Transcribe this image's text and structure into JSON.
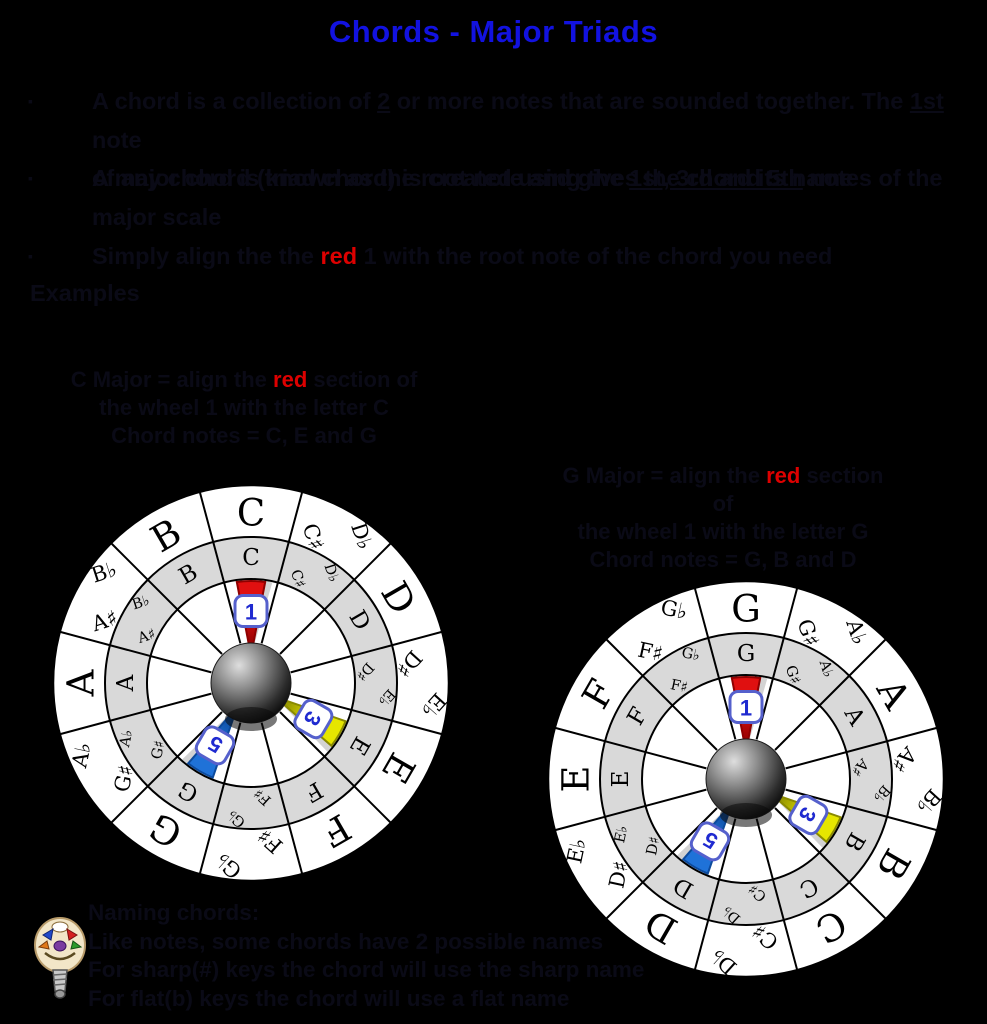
{
  "title": "Chords - Major Triads",
  "colors": {
    "title_blue": "#1212e0",
    "accent_red": "#dd0000",
    "body_text": "#0a0a16",
    "ring_gray": "#d9d9d9",
    "wedge": {
      "red": {
        "fill": "#e01010",
        "edge": "#8f0000"
      },
      "yellow": {
        "fill": "#e6e600",
        "edge": "#8a8a00"
      },
      "blue": {
        "fill": "#1f72d8",
        "edge": "#0c4a9c"
      }
    },
    "badge_border": "#5560cc",
    "badge_text": "#1f2ad0"
  },
  "bullets": [
    {
      "lines": [
        [
          {
            "t": "A chord is a collection of "
          },
          {
            "t": "2",
            "u": 1
          },
          {
            "t": " or more notes that are sounded together. The "
          },
          {
            "t": "1st",
            "u": 1
          },
          {
            "t": " note"
          }
        ],
        [
          {
            "t": "of any chord is known as the root note and gives the chord its name"
          }
        ]
      ]
    },
    {
      "lines": [
        [
          {
            "t": "A major chord (triad chord) is created using the "
          },
          {
            "t": "1st, 3rd and 5th",
            "u": 1
          },
          {
            "t": " notes of the"
          }
        ],
        [
          {
            "t": "major scale"
          }
        ]
      ]
    },
    {
      "lines": [
        [
          {
            "t": "Simply align the the "
          },
          {
            "t": "red",
            "red": 1
          },
          {
            "t": " 1 with the root note of the chord you need"
          }
        ]
      ]
    }
  ],
  "examples_label": "Examples",
  "captions": {
    "left": {
      "lines": [
        [
          {
            "t": "C Major = align the "
          },
          {
            "t": "red",
            "red": 1
          },
          {
            "t": " section of"
          }
        ],
        [
          {
            "t": "the wheel 1 with the letter C"
          }
        ],
        [
          {
            "t": "Chord notes = C, E and G"
          }
        ]
      ]
    },
    "right": {
      "lines": [
        [
          {
            "t": "G Major = align the "
          },
          {
            "t": "red",
            "red": 1
          },
          {
            "t": " section of"
          }
        ],
        [
          {
            "t": "the wheel 1 with the letter G"
          }
        ],
        [
          {
            "t": "Chord notes = G, B and D"
          }
        ]
      ]
    }
  },
  "wheels": [
    {
      "name": "C major chord wheel",
      "notes": [
        "C",
        "C#|Db",
        "D",
        "D#|Eb",
        "E",
        "F",
        "F#|Gb",
        "G",
        "G#|Ab",
        "A",
        "A#|Bb",
        "B"
      ],
      "wedges": [
        {
          "label": "1",
          "angle": 0,
          "color": "red"
        },
        {
          "label": "3",
          "angle": 120,
          "color": "yellow"
        },
        {
          "label": "5",
          "angle": 210,
          "color": "blue"
        }
      ]
    },
    {
      "name": "G major chord wheel",
      "notes": [
        "G",
        "G#|Ab",
        "A",
        "A#|Bb",
        "B",
        "C",
        "C#|Db",
        "D",
        "D#|Eb",
        "E",
        "F",
        "F#|Gb"
      ],
      "wedges": [
        {
          "label": "1",
          "angle": 0,
          "color": "red"
        },
        {
          "label": "3",
          "angle": 120,
          "color": "yellow"
        },
        {
          "label": "5",
          "angle": 210,
          "color": "blue"
        }
      ]
    }
  ],
  "footer": {
    "lines": [
      "Naming chords:",
      "Like notes, some chords have 2 possible names",
      "For sharp(#) keys the chord will use the sharp name",
      "For flat(b) keys the chord will use a flat name"
    ]
  },
  "icons": {
    "bulb": "lightbulb-icon"
  }
}
